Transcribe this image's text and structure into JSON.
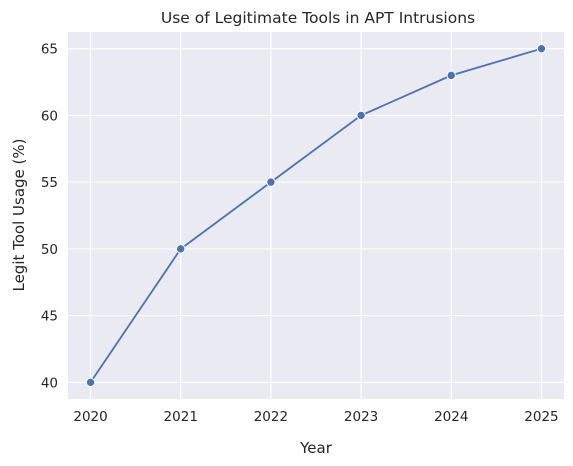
{
  "chart_data": {
    "type": "line",
    "title": "Use of Legitimate Tools in APT Intrusions",
    "xlabel": "Year",
    "ylabel": "Legit Tool Usage (%)",
    "x": [
      2020,
      2021,
      2022,
      2023,
      2024,
      2025
    ],
    "series": [
      {
        "values": [
          40,
          50,
          55,
          60,
          63,
          65
        ],
        "color": "#4c72b0",
        "marker": "circle"
      }
    ],
    "xlim": [
      2019.75,
      2025.25
    ],
    "ylim": [
      38.75,
      66.25
    ],
    "xticks": [
      2020,
      2021,
      2022,
      2023,
      2024,
      2025
    ],
    "yticks": [
      40,
      45,
      50,
      55,
      60,
      65
    ],
    "grid": true,
    "legend": "none"
  }
}
